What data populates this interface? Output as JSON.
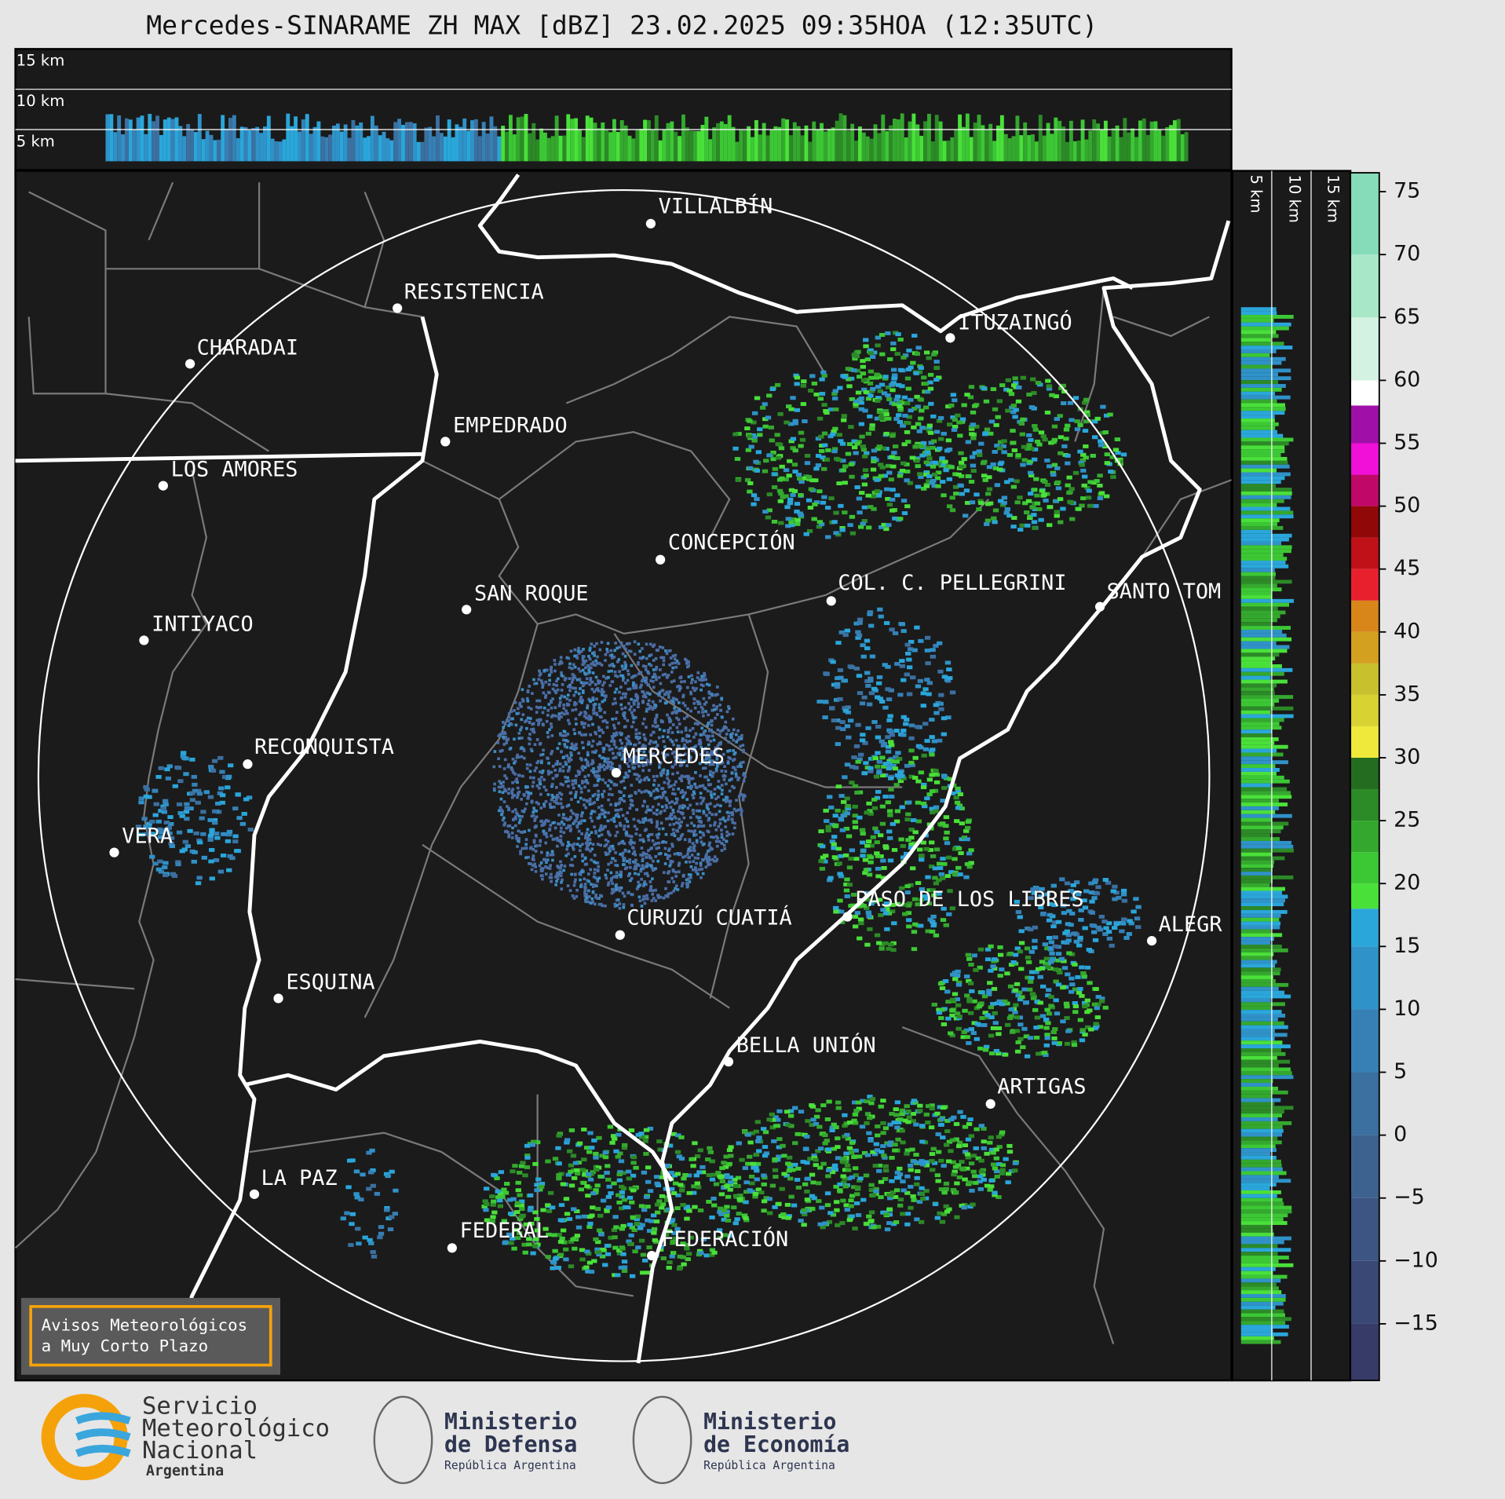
{
  "title": "Mercedes-SINARAME ZH MAX [dBZ] 23.02.2025 09:35HOA (12:35UTC)",
  "top_panel": {
    "levels": [
      "15 km",
      "10 km",
      "5 km"
    ]
  },
  "side_panel": {
    "levels": [
      "5 km",
      "10 km",
      "15 km"
    ]
  },
  "cities": [
    "VILLALBÍN",
    "RESISTENCIA",
    "CHARADAI",
    "EMPEDRADO",
    "LOS AMORES",
    "CONCEPCIÓN",
    "SAN ROQUE",
    "COL. C. PELLEGRINI",
    "SANTO TOM",
    "INTIYACO",
    "ITUZAINGÓ",
    "RECONQUISTA",
    "MERCEDES",
    "VERA",
    "PASO DE LOS LIBRES",
    "CURUZÚ CUATIÁ",
    "ALEGR",
    "ESQUINA",
    "BELLA UNIÓN",
    "ARTIGAS",
    "LA PAZ",
    "FEDERAL",
    "FEDERACIÓN"
  ],
  "notice": [
    "Avisos Meteorológicos",
    "a Muy Corto Plazo"
  ],
  "logos": [
    [
      "Servicio",
      "Meteorológico",
      "Nacional",
      "Argentina"
    ],
    [
      "Ministerio",
      "de Defensa",
      "República Argentina"
    ],
    [
      "Ministerio",
      "de Economía",
      "República Argentina"
    ]
  ],
  "colorbar": {
    "lim": [
      -19.5,
      76.5
    ],
    "ticks": [
      75,
      70,
      65,
      60,
      55,
      50,
      45,
      40,
      35,
      30,
      25,
      20,
      15,
      10,
      5,
      0,
      {
        "value": -5,
        "label": "−5"
      },
      {
        "value": -10,
        "label": "−10"
      },
      {
        "value": -15,
        "label": "−15"
      }
    ],
    "bands": [
      {
        "from": -19.5,
        "to": -15,
        "color": "#373b68"
      },
      {
        "from": -15,
        "to": -10,
        "color": "#3a4876"
      },
      {
        "from": -10,
        "to": -5,
        "color": "#3c5583"
      },
      {
        "from": -5,
        "to": 0,
        "color": "#3d6290"
      },
      {
        "from": 0,
        "to": 5,
        "color": "#3b70a0"
      },
      {
        "from": 5,
        "to": 10,
        "color": "#3680b5"
      },
      {
        "from": 10,
        "to": 15,
        "color": "#2f92c8"
      },
      {
        "from": 15,
        "to": 18,
        "color": "#2aa6da"
      },
      {
        "from": 18,
        "to": 20,
        "color": "#4ae03a"
      },
      {
        "from": 20,
        "to": 22.5,
        "color": "#3cc835"
      },
      {
        "from": 22.5,
        "to": 25,
        "color": "#34a82e"
      },
      {
        "from": 25,
        "to": 27.5,
        "color": "#2c8a27"
      },
      {
        "from": 27.5,
        "to": 30,
        "color": "#246d20"
      },
      {
        "from": 30,
        "to": 32.5,
        "color": "#efe93c"
      },
      {
        "from": 32.5,
        "to": 35,
        "color": "#d8d232"
      },
      {
        "from": 35,
        "to": 37.5,
        "color": "#c8c02c"
      },
      {
        "from": 37.5,
        "to": 40,
        "color": "#d4a020"
      },
      {
        "from": 40,
        "to": 42.5,
        "color": "#d8861a"
      },
      {
        "from": 42.5,
        "to": 45,
        "color": "#e8202e"
      },
      {
        "from": 45,
        "to": 47.5,
        "color": "#c01018"
      },
      {
        "from": 47.5,
        "to": 50,
        "color": "#900808"
      },
      {
        "from": 50,
        "to": 52.5,
        "color": "#c00868"
      },
      {
        "from": 52.5,
        "to": 55,
        "color": "#f010d8"
      },
      {
        "from": 55,
        "to": 58,
        "color": "#a010a8"
      },
      {
        "from": 58,
        "to": 60,
        "color": "#ffffff"
      },
      {
        "from": 60,
        "to": 65,
        "color": "#d4f2e2"
      },
      {
        "from": 65,
        "to": 70,
        "color": "#a8e8c8"
      },
      {
        "from": 70,
        "to": 76.5,
        "color": "#86dcb8"
      }
    ]
  }
}
